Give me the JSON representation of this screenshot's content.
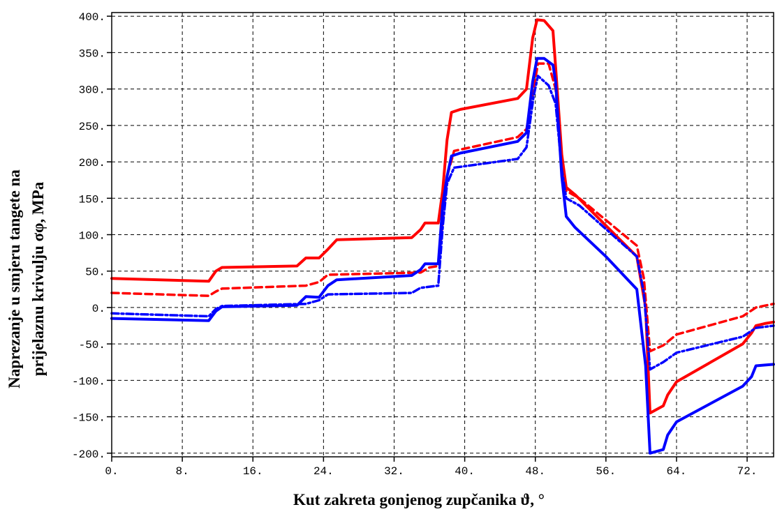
{
  "chart_data": {
    "type": "line",
    "xlabel": "Kut zakreta gonjenog zupčanika ϑ, °",
    "ylabel_line1": "Naprezanje  u smjeru tangete na",
    "ylabel_line2": "prijelaznu krivulju  σφ, MPa",
    "xlim": [
      0,
      75
    ],
    "ylim": [
      -205,
      405
    ],
    "x_ticks": [
      0,
      8,
      16,
      24,
      32,
      40,
      48,
      56,
      64,
      72
    ],
    "x_tick_labels": [
      "0.",
      "8.",
      "16.",
      "24.",
      "32.",
      "40.",
      "48.",
      "56.",
      "64.",
      "72."
    ],
    "y_ticks": [
      400,
      350,
      300,
      250,
      200,
      150,
      100,
      50,
      0,
      -50,
      -100,
      -150,
      -200
    ],
    "y_tick_labels": [
      "400.",
      "350.",
      "300.",
      "250.",
      "200.",
      "150.",
      "100.",
      "50.",
      "0.",
      "-50.",
      "-100.",
      "-150.",
      "-200."
    ],
    "grid": true,
    "series": [
      {
        "color": "#ff0000",
        "dash": "solid",
        "points": [
          [
            0,
            40
          ],
          [
            11,
            36
          ],
          [
            11.8,
            50
          ],
          [
            12.5,
            55
          ],
          [
            21,
            57
          ],
          [
            22,
            68
          ],
          [
            23.5,
            68
          ],
          [
            24.5,
            80
          ],
          [
            25.5,
            93
          ],
          [
            34,
            96
          ],
          [
            35,
            107
          ],
          [
            35.5,
            116
          ],
          [
            37,
            116
          ],
          [
            37.5,
            160
          ],
          [
            38,
            230
          ],
          [
            38.5,
            268
          ],
          [
            39.5,
            272
          ],
          [
            46,
            287
          ],
          [
            47,
            300
          ],
          [
            47.7,
            370
          ],
          [
            48.2,
            395
          ],
          [
            49,
            394
          ],
          [
            50,
            380
          ],
          [
            50.3,
            330
          ],
          [
            51,
            210
          ],
          [
            51.5,
            165
          ],
          [
            52.5,
            155
          ],
          [
            59.5,
            70
          ],
          [
            60.5,
            0
          ],
          [
            61,
            -145
          ],
          [
            62.5,
            -135
          ],
          [
            63,
            -120
          ],
          [
            64,
            -102
          ],
          [
            71.5,
            -50
          ],
          [
            72.5,
            -35
          ],
          [
            73,
            -25
          ],
          [
            74,
            -22
          ],
          [
            75,
            -20
          ]
        ]
      },
      {
        "color": "#ff0000",
        "dash": "dashed",
        "points": [
          [
            0,
            20
          ],
          [
            11,
            16
          ],
          [
            11.8,
            22
          ],
          [
            12.5,
            26
          ],
          [
            22,
            30
          ],
          [
            23.5,
            35
          ],
          [
            24.5,
            45
          ],
          [
            35,
            48
          ],
          [
            36,
            55
          ],
          [
            37,
            57
          ],
          [
            37.5,
            120
          ],
          [
            38,
            180
          ],
          [
            38.8,
            215
          ],
          [
            46,
            234
          ],
          [
            47,
            245
          ],
          [
            47.8,
            300
          ],
          [
            48.3,
            335
          ],
          [
            49.5,
            335
          ],
          [
            50.3,
            300
          ],
          [
            51,
            200
          ],
          [
            51.5,
            160
          ],
          [
            53,
            150
          ],
          [
            59.5,
            85
          ],
          [
            60.3,
            40
          ],
          [
            61,
            -60
          ],
          [
            62.5,
            -52
          ],
          [
            64,
            -37
          ],
          [
            71.5,
            -12
          ],
          [
            73,
            0
          ],
          [
            75,
            5
          ]
        ]
      },
      {
        "color": "#0000ff",
        "dash": "solid",
        "points": [
          [
            0,
            -15
          ],
          [
            11,
            -18
          ],
          [
            11.8,
            -5
          ],
          [
            12.5,
            1
          ],
          [
            21,
            3
          ],
          [
            22,
            15
          ],
          [
            23.5,
            14
          ],
          [
            24.5,
            30
          ],
          [
            25.5,
            38
          ],
          [
            34,
            44
          ],
          [
            35,
            52
          ],
          [
            35.5,
            60
          ],
          [
            37,
            60
          ],
          [
            37.5,
            140
          ],
          [
            38,
            180
          ],
          [
            38.5,
            208
          ],
          [
            39.5,
            212
          ],
          [
            46,
            228
          ],
          [
            47,
            240
          ],
          [
            47.7,
            310
          ],
          [
            48.2,
            342
          ],
          [
            49,
            342
          ],
          [
            50,
            333
          ],
          [
            50.3,
            310
          ],
          [
            51,
            180
          ],
          [
            51.5,
            125
          ],
          [
            52.5,
            110
          ],
          [
            56,
            70
          ],
          [
            59.5,
            25
          ],
          [
            60.5,
            -80
          ],
          [
            61,
            -200
          ],
          [
            62.5,
            -195
          ],
          [
            63,
            -175
          ],
          [
            64,
            -157
          ],
          [
            71.5,
            -108
          ],
          [
            72.5,
            -95
          ],
          [
            73,
            -80
          ],
          [
            75,
            -78
          ]
        ]
      },
      {
        "color": "#0000ff",
        "dash": "dashdot",
        "points": [
          [
            0,
            -8
          ],
          [
            11,
            -12
          ],
          [
            11.8,
            -2
          ],
          [
            12.5,
            2
          ],
          [
            22,
            5
          ],
          [
            23.5,
            10
          ],
          [
            24.5,
            18
          ],
          [
            34,
            20
          ],
          [
            35,
            27
          ],
          [
            37,
            30
          ],
          [
            37.5,
            110
          ],
          [
            38,
            170
          ],
          [
            38.8,
            192
          ],
          [
            46,
            204
          ],
          [
            47,
            220
          ],
          [
            47.8,
            290
          ],
          [
            48.3,
            318
          ],
          [
            49.5,
            305
          ],
          [
            50.3,
            280
          ],
          [
            51,
            190
          ],
          [
            51.5,
            150
          ],
          [
            53,
            140
          ],
          [
            59.5,
            70
          ],
          [
            60.3,
            20
          ],
          [
            61,
            -85
          ],
          [
            62.5,
            -75
          ],
          [
            64,
            -62
          ],
          [
            71.5,
            -40
          ],
          [
            73,
            -28
          ],
          [
            75,
            -25
          ]
        ]
      }
    ]
  }
}
